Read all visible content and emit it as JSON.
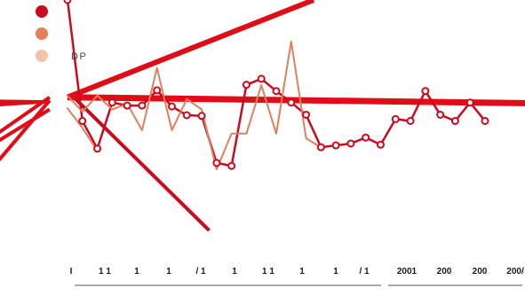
{
  "chart_data": {
    "type": "line",
    "title": "",
    "xlabel": "",
    "ylabel": "",
    "grid": false,
    "legend_position": "top-left",
    "colors": {
      "primary": "#cc0a1f",
      "secondary": "#e1805b",
      "tertiary": "#f2c3a8",
      "accent_red": "#e00d18",
      "background": "#ffffff",
      "tick_text": "#1a1a1a",
      "axis_line": "#555555"
    },
    "legend": [
      {
        "label": "",
        "color": "#cc0a1f"
      },
      {
        "label": "",
        "color": "#e1805b"
      },
      {
        "label": "DP",
        "color": "#f2c3a8"
      }
    ],
    "x_tick_labels": [
      "I",
      "1 1",
      "1",
      "1",
      "/ 1",
      "1",
      "1 1",
      "1",
      "1",
      "/ 1",
      "2001",
      "200",
      "200",
      "200/"
    ],
    "ylim": [
      0,
      100
    ],
    "series": [
      {
        "name": "",
        "color": "#cc0a1f",
        "marker": "circle",
        "values": [
          [
            0,
            100
          ],
          [
            1,
            47.5
          ],
          [
            2,
            35.5
          ],
          [
            3,
            55.5
          ],
          [
            4,
            54.2
          ],
          [
            5,
            54.2
          ],
          [
            6,
            60.8
          ],
          [
            7,
            53.8
          ],
          [
            8,
            50
          ],
          [
            9,
            49.7
          ],
          [
            10,
            29.3
          ],
          [
            11,
            28
          ],
          [
            12,
            63.2
          ],
          [
            13,
            65.8
          ],
          [
            14,
            60.5
          ],
          [
            15,
            55.5
          ],
          [
            16,
            50.2
          ],
          [
            17,
            36.1
          ],
          [
            18,
            36.9
          ],
          [
            19,
            37.7
          ],
          [
            20,
            40.3
          ],
          [
            21,
            37.2
          ],
          [
            22,
            48.3
          ],
          [
            23,
            47.5
          ],
          [
            24,
            60.5
          ],
          [
            25,
            50.2
          ],
          [
            26,
            47.5
          ],
          [
            27,
            55.5
          ],
          [
            28,
            47.5
          ]
        ]
      },
      {
        "name": "",
        "color": "#e1805b",
        "marker": "none",
        "values": [
          [
            0,
            58.5
          ],
          [
            1,
            51.5
          ],
          [
            2,
            58.5
          ],
          [
            3,
            52.5
          ],
          [
            4,
            55
          ],
          [
            5,
            43.5
          ],
          [
            6,
            70.5
          ],
          [
            7,
            43.5
          ],
          [
            8,
            57
          ],
          [
            9,
            52.5
          ],
          [
            10,
            26.5
          ],
          [
            11,
            42
          ],
          [
            12,
            42
          ],
          [
            13,
            63
          ],
          [
            14,
            42
          ],
          [
            15,
            82
          ],
          [
            16,
            40
          ],
          [
            17,
            36
          ]
        ]
      },
      {
        "name": "",
        "color": "#e1805b",
        "marker": "none",
        "values": [
          [
            0,
            53
          ],
          [
            1,
            44.5
          ],
          [
            2,
            34.5
          ]
        ]
      }
    ],
    "overlay_segments": [
      {
        "from": [
          0,
          57.8
        ],
        "to": [
          31,
          55.2
        ],
        "color": "#e00d18",
        "width": 7
      },
      {
        "from": [
          0,
          57.8
        ],
        "to": [
          16.5,
          100
        ],
        "color": "#e00d18",
        "width": 6
      },
      {
        "from": [
          0.5,
          57.3
        ],
        "to": [
          9.5,
          0
        ],
        "color": "#cc0a1f",
        "width": 4
      },
      {
        "from": [
          -1.2,
          57.8
        ],
        "to": [
          -4.6,
          42.5
        ],
        "color": "#e00d18",
        "width": 4
      },
      {
        "from": [
          -1.2,
          52.5
        ],
        "to": [
          -4.6,
          39
        ],
        "color": "#e00d18",
        "width": 4
      },
      {
        "from": [
          -4.6,
          54.6
        ],
        "to": [
          -1.2,
          56
        ],
        "color": "#e00d18",
        "width": 4
      },
      {
        "from": [
          -4.6,
          56
        ],
        "to": [
          -1.2,
          55.7
        ],
        "color": "#e00d18",
        "width": 4
      },
      {
        "from": [
          -1.2,
          56.4
        ],
        "to": [
          -4.6,
          30.5
        ],
        "color": "#e00d18",
        "width": 4
      }
    ]
  }
}
